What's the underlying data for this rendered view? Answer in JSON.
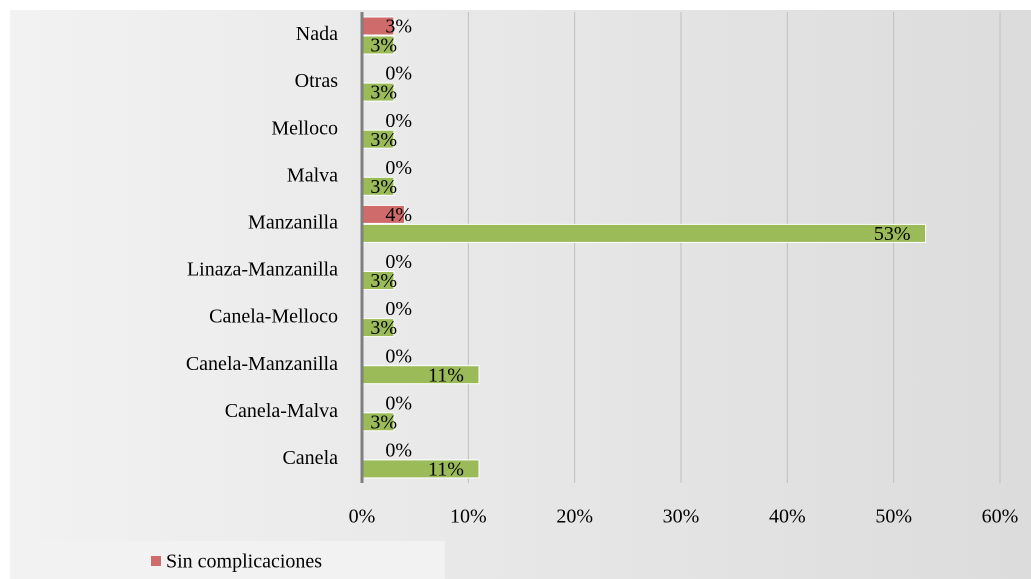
{
  "chart_data": {
    "type": "hbar",
    "categories": [
      "Canela",
      "Canela-Malva",
      "Canela-Manzanilla",
      "Canela-Melloco",
      "Linaza-Manzanilla",
      "Manzanilla",
      "Malva",
      "Melloco",
      "Otras",
      "Nada"
    ],
    "series": [
      {
        "name": "Sin complicaciones",
        "color": "#d06b6b",
        "values": [
          0,
          0,
          0,
          0,
          0,
          4,
          0,
          0,
          0,
          3
        ],
        "value_labels": [
          "0%",
          "0%",
          "0%",
          "0%",
          "0%",
          "4%",
          "0%",
          "0%",
          "0%",
          "3%"
        ]
      },
      {
        "color": "#9bbb59",
        "values": [
          11,
          3,
          11,
          3,
          3,
          53,
          3,
          3,
          3,
          3
        ],
        "value_labels": [
          "11%",
          "3%",
          "11%",
          "3%",
          "3%",
          "53%",
          "3%",
          "3%",
          "3%",
          "3%"
        ]
      }
    ],
    "xlim": [
      0,
      60
    ],
    "xticks": [
      {
        "value": 0,
        "label": "0%"
      },
      {
        "value": 10,
        "label": "10%"
      },
      {
        "value": 20,
        "label": "20%"
      },
      {
        "value": 30,
        "label": "30%"
      },
      {
        "value": 40,
        "label": "40%"
      },
      {
        "value": 50,
        "label": "50%"
      },
      {
        "value": 60,
        "label": "60%"
      }
    ],
    "grid": true,
    "legend": "bottom-left"
  }
}
